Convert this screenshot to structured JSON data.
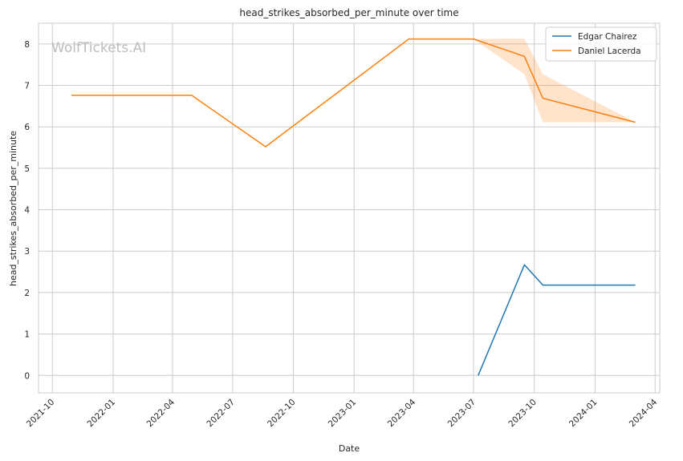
{
  "chart_data": {
    "type": "line",
    "title": "head_strikes_absorbed_per_minute over time",
    "xlabel": "Date",
    "ylabel": "head_strikes_absorbed_per_minute",
    "watermark": "WolfTickets.AI",
    "x_ticks": [
      "2021-10",
      "2022-01",
      "2022-04",
      "2022-07",
      "2022-10",
      "2023-01",
      "2023-04",
      "2023-07",
      "2023-10",
      "2024-01",
      "2024-04"
    ],
    "x_range": [
      "2021-09-10",
      "2024-04-08"
    ],
    "y_ticks": [
      0,
      1,
      2,
      3,
      4,
      5,
      6,
      7,
      8
    ],
    "ylim": [
      -0.42,
      8.5
    ],
    "grid": true,
    "legend_position": "top-right",
    "series": [
      {
        "name": "Edgar Chairez",
        "color": "#1f77b4",
        "x": [
          "2023-07-08",
          "2023-09-16",
          "2023-10-14",
          "2024-03-02"
        ],
        "y": [
          0.0,
          2.67,
          2.18,
          2.18
        ]
      },
      {
        "name": "Daniel Lacerda",
        "color": "#ff7f0e",
        "x": [
          "2021-10-30",
          "2022-04-30",
          "2022-08-20",
          "2023-03-25",
          "2023-07-01",
          "2023-09-16",
          "2023-10-14",
          "2024-03-02"
        ],
        "y": [
          6.76,
          6.76,
          5.52,
          8.12,
          8.12,
          7.7,
          6.69,
          6.11
        ],
        "ci_lower": [
          6.76,
          6.76,
          5.52,
          8.12,
          8.12,
          7.27,
          6.11,
          6.11
        ],
        "ci_upper": [
          6.76,
          6.76,
          5.52,
          8.12,
          8.12,
          8.13,
          7.27,
          6.11
        ]
      }
    ]
  }
}
